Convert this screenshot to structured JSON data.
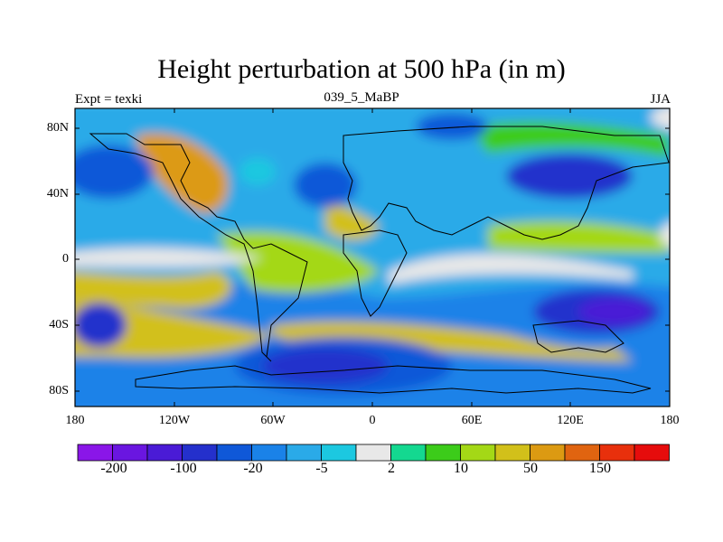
{
  "title": "Height perturbation at 500 hPa (in m)",
  "subtitle_left": "Expt = texki",
  "subtitle_center": "039_5_MaBP",
  "subtitle_right": "JJA",
  "chart_data": {
    "type": "heatmap",
    "projection": "cylindrical-equidistant",
    "lon_range": [
      -180,
      180
    ],
    "lat_range": [
      -90,
      90
    ],
    "x_tick_labels": [
      "180",
      "120W",
      "60W",
      "0",
      "60E",
      "120E",
      "180"
    ],
    "y_tick_labels": [
      "80N",
      "40N",
      "0",
      "40S",
      "80S"
    ],
    "colorbar": {
      "levels": [
        "-200",
        "-100",
        "-20",
        "-5",
        "2",
        "10",
        "50",
        "150"
      ],
      "colors": [
        "#8a16e8",
        "#6a16e0",
        "#4a1bd6",
        "#2430cc",
        "#0f58d8",
        "#1a82e8",
        "#2aaae8",
        "#1cc8e0",
        "#e8e8e8",
        "#14d890",
        "#3ccc1a",
        "#a4d816",
        "#d2c01a",
        "#dc9a12",
        "#e06410",
        "#e8300c",
        "#e60c0c"
      ]
    }
  }
}
